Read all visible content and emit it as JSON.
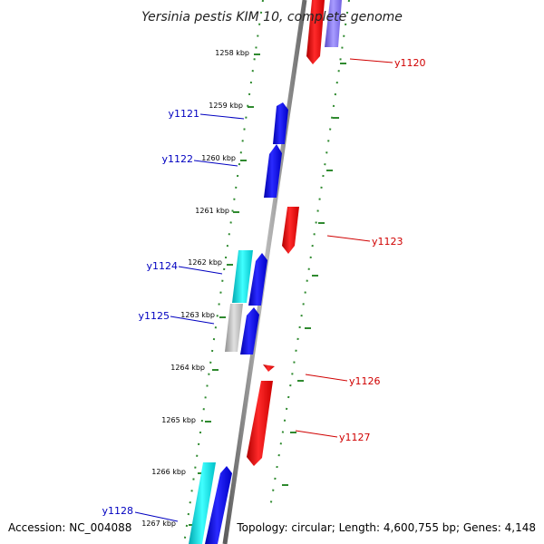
{
  "title": "Yersinia pestis KIM 10, complete genome",
  "footer": {
    "accession": "Accession: NC_004088",
    "topology": "Topology: circular; Length: 4,600,755 bp; Genes: 4,148"
  },
  "colors": {
    "backbone": "#808080",
    "forward": "#0000ee",
    "reverse": "#ee0000",
    "cyan": "#00d8e0",
    "grey": "#b8b8b8",
    "lavender": "#8070e0",
    "tick": "#2f8a2f",
    "left_label": "#0000c0",
    "right_label": "#d00000"
  },
  "ticks": [
    {
      "label": "1258 kbp"
    },
    {
      "label": "1259 kbp"
    },
    {
      "label": "1260 kbp"
    },
    {
      "label": "1261 kbp"
    },
    {
      "label": "1262 kbp"
    },
    {
      "label": "1263 kbp"
    },
    {
      "label": "1264 kbp"
    },
    {
      "label": "1265 kbp"
    },
    {
      "label": "1266 kbp"
    },
    {
      "label": "1267 kbp"
    }
  ],
  "genes_left": [
    {
      "label": "y1121"
    },
    {
      "label": "y1122"
    },
    {
      "label": "y1124"
    },
    {
      "label": "y1125"
    },
    {
      "label": "y1128"
    }
  ],
  "genes_right": [
    {
      "label": "y1120"
    },
    {
      "label": "y1123"
    },
    {
      "label": "y1126"
    },
    {
      "label": "y1127"
    }
  ]
}
